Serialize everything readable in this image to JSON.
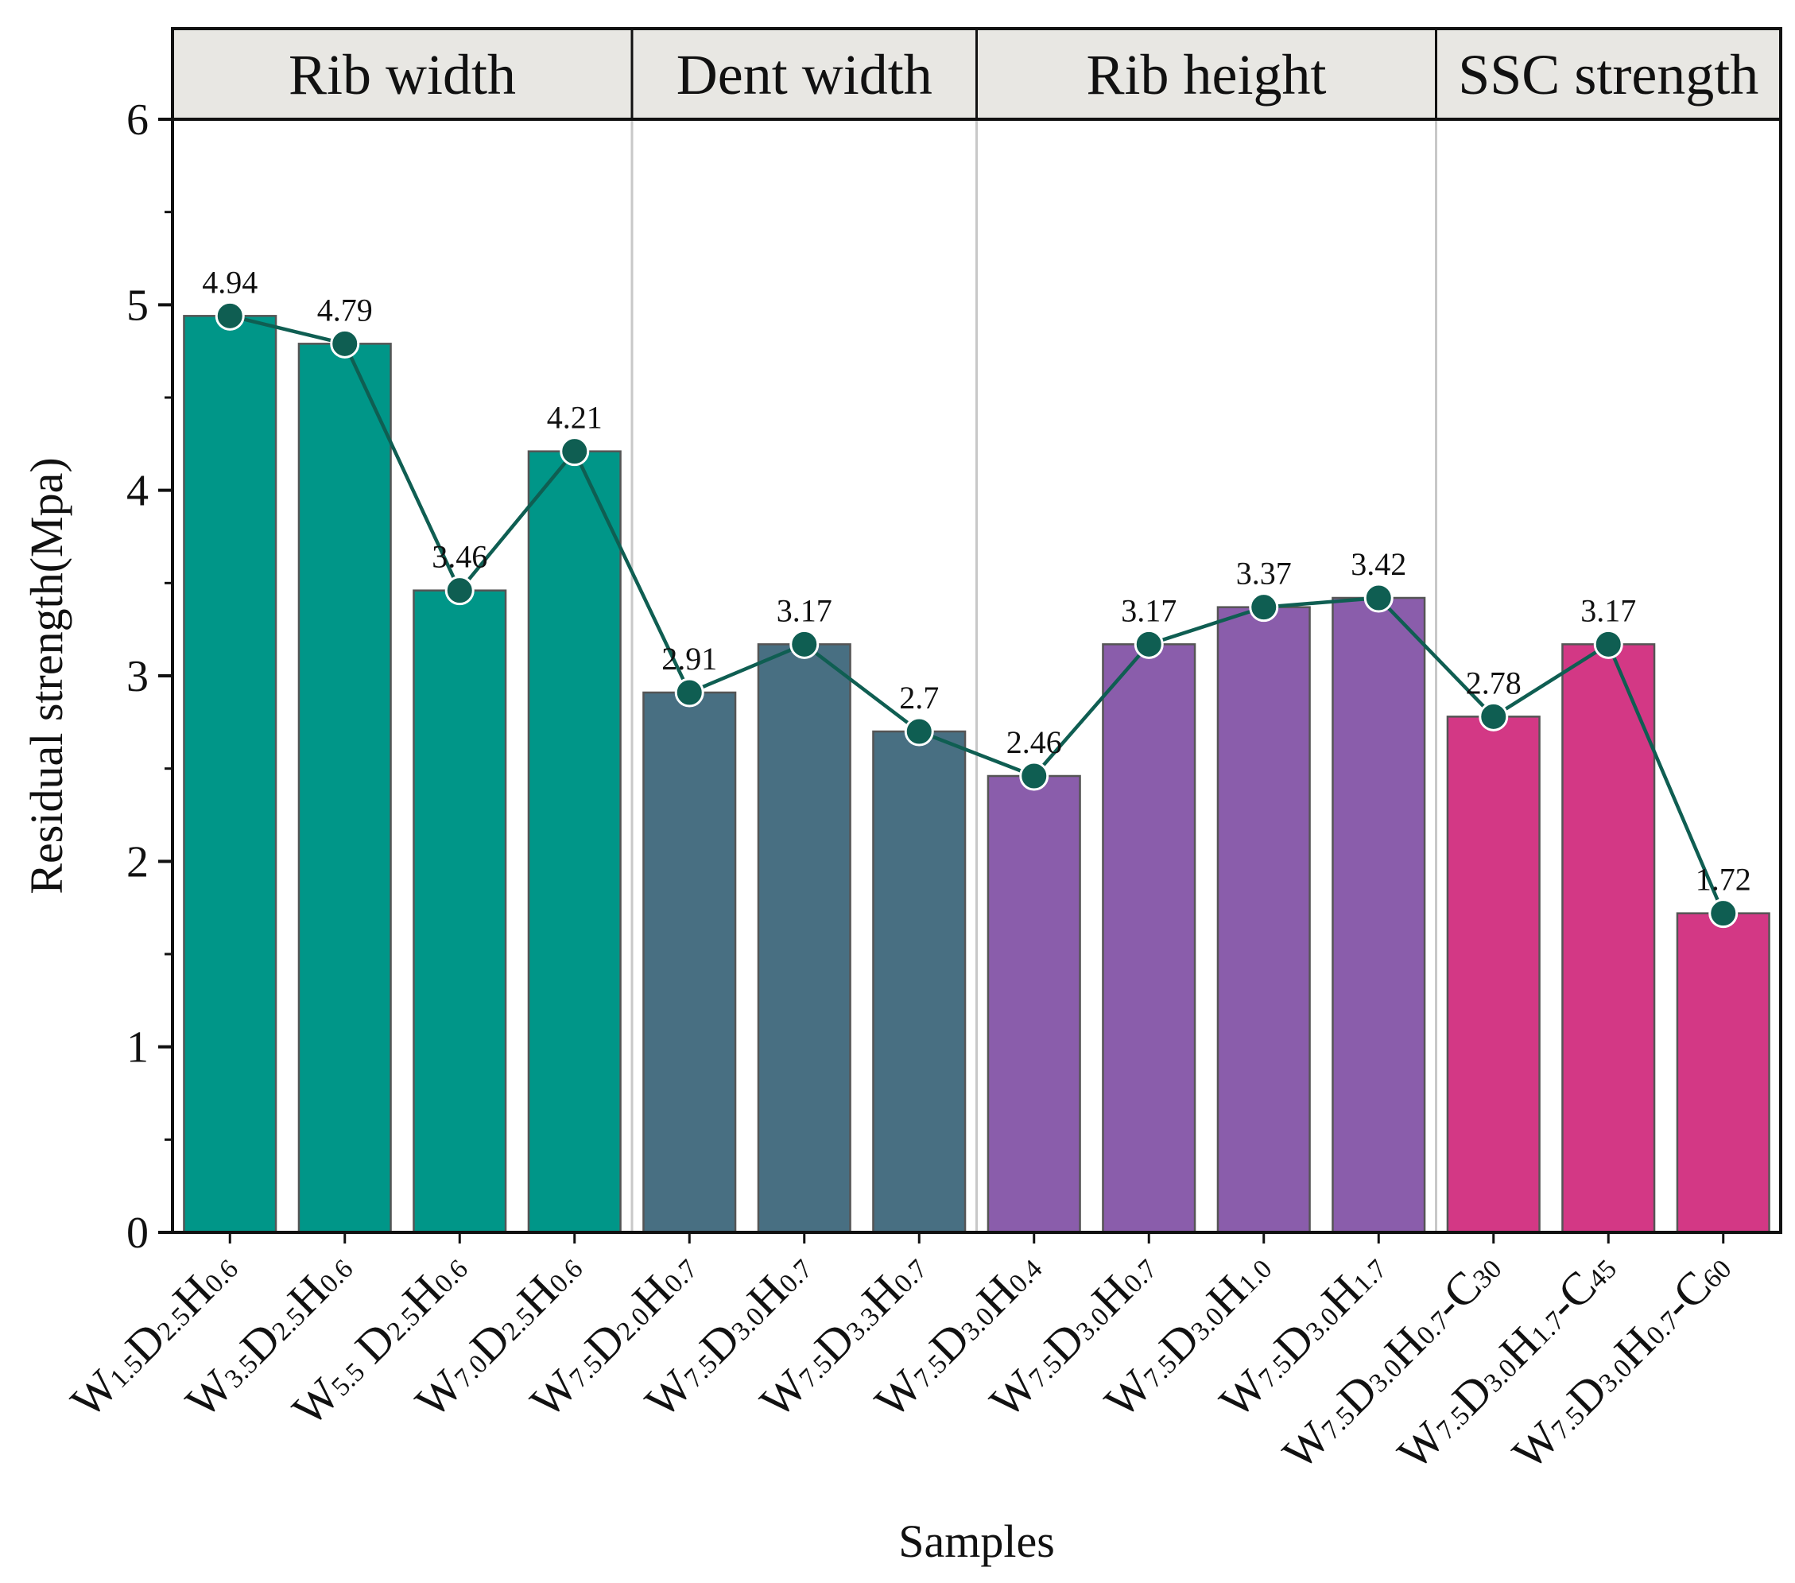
{
  "chart_data": {
    "type": "bar",
    "title": "",
    "xlabel": "Samples",
    "ylabel": "Residual strength(Mpa)",
    "ylim": [
      0,
      6
    ],
    "yticks": [
      "0",
      "1",
      "2",
      "3",
      "4",
      "5",
      "6"
    ],
    "grid": false,
    "legend": "none",
    "line_color": "#0f5e52",
    "groups": [
      {
        "label": "Rib width",
        "color": "#009688",
        "start": 0,
        "end": 3
      },
      {
        "label": "Dent width",
        "color": "#486f82",
        "start": 4,
        "end": 6
      },
      {
        "label": "Rib height",
        "color": "#8a5dab",
        "start": 7,
        "end": 10
      },
      {
        "label": "SSC strength",
        "color": "#d33885",
        "start": 11,
        "end": 13
      }
    ],
    "categories": [
      {
        "parts": [
          [
            "W",
            ""
          ],
          [
            "1.5",
            "s"
          ],
          [
            "D",
            ""
          ],
          [
            "2.5",
            "s"
          ],
          [
            "H",
            ""
          ],
          [
            "0.6",
            "s"
          ]
        ]
      },
      {
        "parts": [
          [
            "W",
            ""
          ],
          [
            "3.5",
            "s"
          ],
          [
            "D",
            ""
          ],
          [
            "2.5",
            "s"
          ],
          [
            "H",
            ""
          ],
          [
            "0.6",
            "s"
          ]
        ]
      },
      {
        "parts": [
          [
            "W",
            ""
          ],
          [
            "5.5",
            "s"
          ],
          [
            " D",
            ""
          ],
          [
            "2.5",
            "s"
          ],
          [
            "H",
            ""
          ],
          [
            "0.6",
            "s"
          ]
        ]
      },
      {
        "parts": [
          [
            "W",
            ""
          ],
          [
            "7.0",
            "s"
          ],
          [
            "D",
            ""
          ],
          [
            "2.5",
            "s"
          ],
          [
            "H",
            ""
          ],
          [
            "0.6",
            "s"
          ]
        ]
      },
      {
        "parts": [
          [
            "W",
            ""
          ],
          [
            "7.5",
            "s"
          ],
          [
            "D",
            ""
          ],
          [
            "2.0",
            "s"
          ],
          [
            "H",
            ""
          ],
          [
            "0.7",
            "s"
          ]
        ]
      },
      {
        "parts": [
          [
            "W",
            ""
          ],
          [
            "7.5",
            "s"
          ],
          [
            "D",
            ""
          ],
          [
            "3.0",
            "s"
          ],
          [
            "H",
            ""
          ],
          [
            "0.7",
            "s"
          ]
        ]
      },
      {
        "parts": [
          [
            "W",
            ""
          ],
          [
            "7.5",
            "s"
          ],
          [
            "D",
            ""
          ],
          [
            "3.3",
            "s"
          ],
          [
            "H",
            ""
          ],
          [
            "0.7",
            "s"
          ]
        ]
      },
      {
        "parts": [
          [
            "W",
            ""
          ],
          [
            "7.5",
            "s"
          ],
          [
            "D",
            ""
          ],
          [
            "3.0",
            "s"
          ],
          [
            "H",
            ""
          ],
          [
            "0.4",
            "s"
          ]
        ]
      },
      {
        "parts": [
          [
            "W",
            ""
          ],
          [
            "7.5",
            "s"
          ],
          [
            "D",
            ""
          ],
          [
            "3.0",
            "s"
          ],
          [
            "H",
            ""
          ],
          [
            "0.7",
            "s"
          ]
        ]
      },
      {
        "parts": [
          [
            "W",
            ""
          ],
          [
            "7.5",
            "s"
          ],
          [
            "D",
            ""
          ],
          [
            "3.0",
            "s"
          ],
          [
            "H",
            ""
          ],
          [
            "1.0",
            "s"
          ]
        ]
      },
      {
        "parts": [
          [
            "W",
            ""
          ],
          [
            "7.5",
            "s"
          ],
          [
            "D",
            ""
          ],
          [
            "3.0",
            "s"
          ],
          [
            "H",
            ""
          ],
          [
            "1.7",
            "s"
          ]
        ]
      },
      {
        "parts": [
          [
            "W",
            ""
          ],
          [
            "7.5",
            "s"
          ],
          [
            "D",
            ""
          ],
          [
            "3.0",
            "s"
          ],
          [
            "H",
            ""
          ],
          [
            "0.7",
            "s"
          ],
          [
            "-C",
            ""
          ],
          [
            "30",
            "s"
          ]
        ]
      },
      {
        "parts": [
          [
            "W",
            ""
          ],
          [
            "7.5",
            "s"
          ],
          [
            "D",
            ""
          ],
          [
            "3.0",
            "s"
          ],
          [
            "H",
            ""
          ],
          [
            "1.7",
            "s"
          ],
          [
            "-C",
            ""
          ],
          [
            "45",
            "s"
          ]
        ]
      },
      {
        "parts": [
          [
            "W",
            ""
          ],
          [
            "7.5",
            "s"
          ],
          [
            "D",
            ""
          ],
          [
            "3.0",
            "s"
          ],
          [
            "H",
            ""
          ],
          [
            "0.7",
            "s"
          ],
          [
            "-C",
            ""
          ],
          [
            "60",
            "s"
          ]
        ]
      }
    ],
    "values": [
      4.94,
      4.79,
      3.46,
      4.21,
      2.91,
      3.17,
      2.7,
      2.46,
      3.17,
      3.37,
      3.42,
      2.78,
      3.17,
      1.72
    ],
    "data_labels": [
      "4.94",
      "4.79",
      "3.46",
      "4.21",
      "2.91",
      "3.17",
      "2.7",
      "2.46",
      "3.17",
      "3.37",
      "3.42",
      "2.78",
      "3.17",
      "1.72"
    ]
  }
}
